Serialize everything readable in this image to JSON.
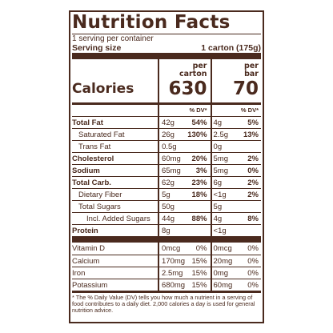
{
  "label": {
    "title": "Nutrition Facts",
    "servings": "1 serving per container",
    "serving_size_label": "Serving size",
    "serving_size_value": "1 carton (175g)"
  },
  "columns": {
    "carton": {
      "per": "per",
      "unit": "carton",
      "calories": "630"
    },
    "bar": {
      "per": "per",
      "unit": "bar",
      "calories": "70"
    },
    "calories_label": "Calories",
    "dv_header": "% DV*"
  },
  "nutrients": [
    {
      "name": "Total Fat",
      "carton_amt": "42g",
      "carton_dv": "54%",
      "bar_amt": "4g",
      "bar_dv": "5%"
    },
    {
      "name": "Saturated Fat",
      "carton_amt": "26g",
      "carton_dv": "130%",
      "bar_amt": "2.5g",
      "bar_dv": "13%"
    },
    {
      "name": "Trans Fat",
      "carton_amt": "0.5g",
      "carton_dv": "",
      "bar_amt": "0g",
      "bar_dv": ""
    },
    {
      "name": "Cholesterol",
      "carton_amt": "60mg",
      "carton_dv": "20%",
      "bar_amt": "5mg",
      "bar_dv": "2%"
    },
    {
      "name": "Sodium",
      "carton_amt": "65mg",
      "carton_dv": "3%",
      "bar_amt": "5mg",
      "bar_dv": "0%"
    },
    {
      "name": "Total Carb.",
      "carton_amt": "62g",
      "carton_dv": "23%",
      "bar_amt": "6g",
      "bar_dv": "2%"
    },
    {
      "name": "Dietary Fiber",
      "carton_amt": "5g",
      "carton_dv": "18%",
      "bar_amt": "<1g",
      "bar_dv": "2%"
    },
    {
      "name": "Total Sugars",
      "carton_amt": "50g",
      "carton_dv": "",
      "bar_amt": "5g",
      "bar_dv": ""
    },
    {
      "name": "Incl. Added Sugars",
      "carton_amt": "44g",
      "carton_dv": "88%",
      "bar_amt": "4g",
      "bar_dv": "8%"
    },
    {
      "name": "Protein",
      "carton_amt": "8g",
      "carton_dv": "",
      "bar_amt": "<1g",
      "bar_dv": ""
    }
  ],
  "vitamins": [
    {
      "name": "Vitamin D",
      "carton_amt": "0mcg",
      "carton_dv": "0%",
      "bar_amt": "0mcg",
      "bar_dv": "0%"
    },
    {
      "name": "Calcium",
      "carton_amt": "170mg",
      "carton_dv": "15%",
      "bar_amt": "20mg",
      "bar_dv": "0%"
    },
    {
      "name": "Iron",
      "carton_amt": "2.5mg",
      "carton_dv": "15%",
      "bar_amt": "0mg",
      "bar_dv": "0%"
    },
    {
      "name": "Potassium",
      "carton_amt": "680mg",
      "carton_dv": "15%",
      "bar_amt": "60mg",
      "bar_dv": "0%"
    }
  ],
  "footnote": "* The % Daily Value (DV) tells you how much a nutrient in a serving of food contributes to a daily diet. 2,000 calories a day is used for general nutrition advice."
}
